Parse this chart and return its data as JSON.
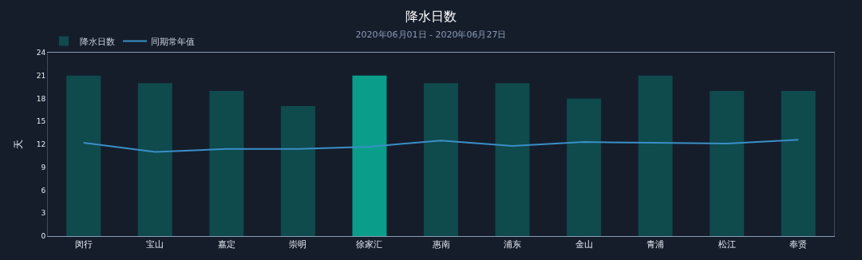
{
  "chart_data": {
    "type": "bar",
    "title": "降水日数",
    "subtitle": "2020年06月01日 - 2020年06月27日",
    "ylabel": "天",
    "categories": [
      "闵行",
      "宝山",
      "嘉定",
      "崇明",
      "徐家汇",
      "惠南",
      "浦东",
      "金山",
      "青浦",
      "松江",
      "奉贤"
    ],
    "series": [
      {
        "name": "降水日数",
        "color": "#0f4a4d",
        "colors": [
          "#0f4a4d",
          "#0f4a4d",
          "#0f4a4d",
          "#0f4a4d",
          "#0a9e8a",
          "#0f4a4d",
          "#0f4a4d",
          "#0f4a4d",
          "#0f4a4d",
          "#0f4a4d",
          "#0f4a4d"
        ],
        "values": [
          21,
          20,
          19,
          17,
          21,
          20,
          20,
          18,
          21,
          19,
          19
        ]
      },
      {
        "name": "同期常年值",
        "type": "line",
        "color": "#3a8fc8",
        "values": [
          12.2,
          11.0,
          11.4,
          11.4,
          11.7,
          12.5,
          11.8,
          12.3,
          12.2,
          12.1,
          12.6
        ]
      }
    ],
    "ylim": [
      0,
      24
    ],
    "yticks": [
      0,
      3,
      6,
      9,
      12,
      15,
      18,
      21,
      24
    ],
    "grid": false,
    "legend": "top left",
    "marker": "none"
  }
}
